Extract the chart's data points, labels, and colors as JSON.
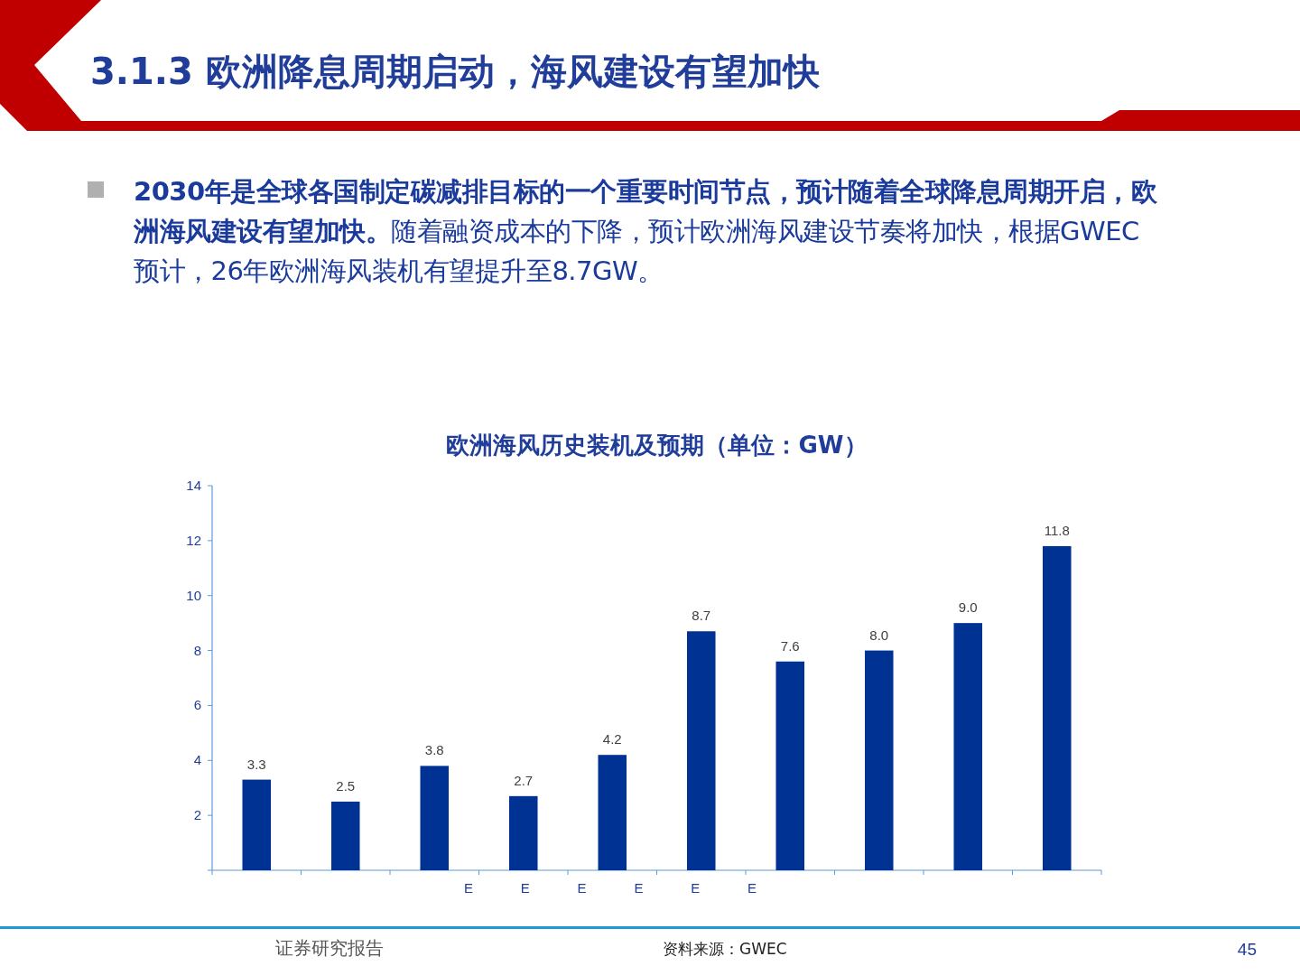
{
  "chart_data": {
    "type": "bar",
    "title": "3.1.3 欧洲降息周期启动，海风建设有望加快",
    "subtitle": "欧洲海风历史装机及预期（单位：GW）",
    "categories": [
      null,
      null,
      null,
      null,
      null,
      null,
      null,
      null,
      null,
      null
    ],
    "values": [
      3.3,
      2.5,
      3.8,
      2.7,
      4.2,
      8.7,
      7.6,
      8.0,
      9.0,
      11.8
    ],
    "value_labels": [
      "3.3",
      "2.5",
      "3.8",
      "2.7",
      "4.2",
      "8.7",
      "7.6",
      "8.0",
      "9.0",
      "11.8"
    ],
    "color": "#003294",
    "ylim": [
      0,
      14
    ],
    "yticks": [
      {
        "value": 0,
        "label": null
      },
      2,
      4,
      6,
      8,
      10,
      12,
      14
    ],
    "grid": false,
    "annotations": [
      "2030年是全球各国制定碳减排目标的一个重要时间节点，预计随着全球降息周期开启，欧洲海风建设有望加快。",
      "随着融资成本的下降，预计欧洲海风建设节奏将加快，根据GWEC预计，26年欧洲海风装机有望提升至8.7GW。",
      "证券研究报告",
      "资料来源：GWEC",
      "45",
      "E",
      "E",
      "E",
      "E",
      "E",
      "E"
    ]
  }
}
